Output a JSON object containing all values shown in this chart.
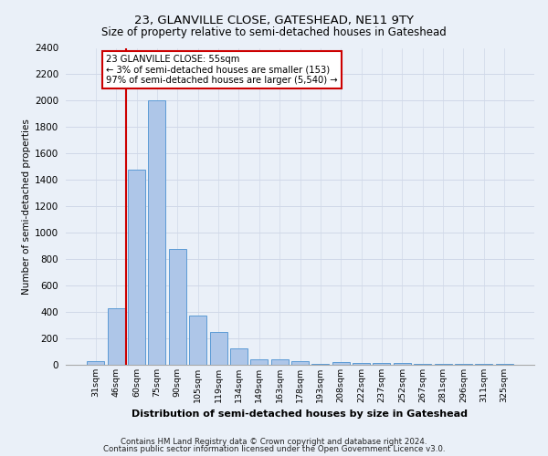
{
  "title": "23, GLANVILLE CLOSE, GATESHEAD, NE11 9TY",
  "subtitle": "Size of property relative to semi-detached houses in Gateshead",
  "xlabel": "Distribution of semi-detached houses by size in Gateshead",
  "ylabel": "Number of semi-detached properties",
  "footer_line1": "Contains HM Land Registry data © Crown copyright and database right 2024.",
  "footer_line2": "Contains public sector information licensed under the Open Government Licence v3.0.",
  "bar_labels": [
    "31sqm",
    "46sqm",
    "60sqm",
    "75sqm",
    "90sqm",
    "105sqm",
    "119sqm",
    "134sqm",
    "149sqm",
    "163sqm",
    "178sqm",
    "193sqm",
    "208sqm",
    "222sqm",
    "237sqm",
    "252sqm",
    "267sqm",
    "281sqm",
    "296sqm",
    "311sqm",
    "325sqm"
  ],
  "bar_values": [
    30,
    430,
    1480,
    2000,
    880,
    370,
    250,
    125,
    40,
    40,
    30,
    5,
    20,
    15,
    15,
    15,
    5,
    5,
    5,
    5,
    5
  ],
  "bar_color": "#aec6e8",
  "bar_edge_color": "#5b9bd5",
  "red_line_x": 1.5,
  "annotation_title": "23 GLANVILLE CLOSE: 55sqm",
  "annotation_line1": "← 3% of semi-detached houses are smaller (153)",
  "annotation_line2": "97% of semi-detached houses are larger (5,540) →",
  "annotation_box_color": "#ffffff",
  "annotation_box_edge": "#cc0000",
  "ylim": [
    0,
    2400
  ],
  "yticks": [
    0,
    200,
    400,
    600,
    800,
    1000,
    1200,
    1400,
    1600,
    1800,
    2000,
    2200,
    2400
  ],
  "grid_color": "#d0d8e8",
  "background_color": "#eaf0f8",
  "plot_bg_color": "#eaf0f8"
}
